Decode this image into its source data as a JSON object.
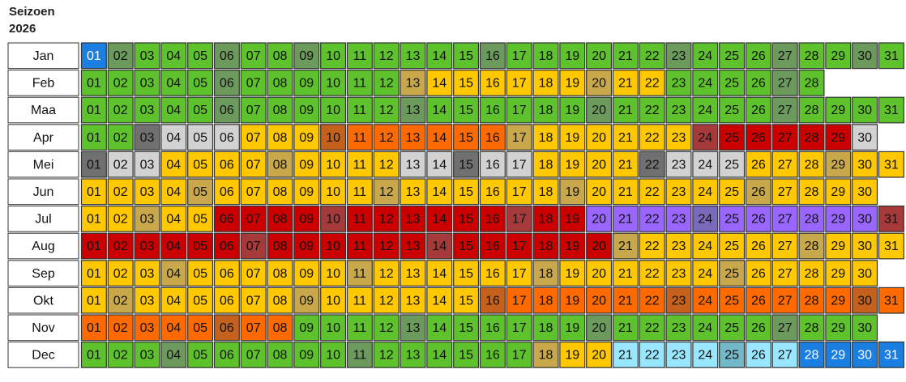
{
  "header": {
    "title": "Seizoen",
    "year": "2026"
  },
  "palette": {
    "g": "#5ec22c",
    "G": "#6b9a5c",
    "y": "#ffc800",
    "Y": "#c9a84c",
    "o": "#ff6a00",
    "O": "#c5611c",
    "r": "#cc0000",
    "R": "#a63a3a",
    "p": "#9966ff",
    "P": "#7a6abb",
    "c": "#99e6ff",
    "C": "#72b8c8",
    "b": "#1a7fe0",
    "l": "#d2d2d2",
    "L": "#707070"
  },
  "months": [
    {
      "name": "Jan",
      "colors": "bGgggGggGggggggGggggggGgggGggGg",
      "days": [
        "01",
        "02",
        "03",
        "04",
        "05",
        "06",
        "07",
        "08",
        "09",
        "10",
        "11",
        "12",
        "13",
        "14",
        "15",
        "16",
        "17",
        "18",
        "19",
        "20",
        "21",
        "22",
        "23",
        "24",
        "25",
        "26",
        "27",
        "28",
        "29",
        "30",
        "31"
      ]
    },
    {
      "name": "Feb",
      "colors": "gggggGggggggYyyyyyyYyyggggGg",
      "days": [
        "01",
        "02",
        "03",
        "04",
        "05",
        "06",
        "07",
        "08",
        "09",
        "10",
        "11",
        "12",
        "13",
        "14",
        "15",
        "16",
        "17",
        "18",
        "19",
        "20",
        "21",
        "22",
        "23",
        "24",
        "25",
        "26",
        "27",
        "28"
      ]
    },
    {
      "name": "Maa",
      "colors": "gggggGggggggGggggggGggggggGgggg",
      "days": [
        "01",
        "02",
        "03",
        "04",
        "05",
        "06",
        "07",
        "08",
        "09",
        "10",
        "11",
        "12",
        "13",
        "14",
        "15",
        "16",
        "17",
        "18",
        "19",
        "20",
        "21",
        "22",
        "23",
        "24",
        "25",
        "26",
        "27",
        "28",
        "29",
        "30",
        "31"
      ]
    },
    {
      "name": "Apr",
      "colors": "ggLlllyyyOooooooYyyyyyyRrrrrrl",
      "days": [
        "01",
        "02",
        "03",
        "04",
        "05",
        "06",
        "07",
        "08",
        "09",
        "10",
        "11",
        "12",
        "13",
        "14",
        "15",
        "16",
        "17",
        "18",
        "19",
        "20",
        "21",
        "22",
        "23",
        "24",
        "25",
        "26",
        "27",
        "28",
        "29",
        "30"
      ]
    },
    {
      "name": "Mei",
      "colors": "LllyyyyYyyyyllLllyyyyLlllyyyYyy",
      "days": [
        "01",
        "02",
        "03",
        "04",
        "05",
        "06",
        "07",
        "08",
        "09",
        "10",
        "11",
        "12",
        "13",
        "14",
        "15",
        "16",
        "17",
        "18",
        "19",
        "20",
        "21",
        "22",
        "23",
        "24",
        "25",
        "26",
        "27",
        "28",
        "29",
        "30",
        "31"
      ]
    },
    {
      "name": "Jun",
      "colors": "yyyyYyyyyyyYyyyyyyYyyyyyyYyyyy",
      "days": [
        "01",
        "02",
        "03",
        "04",
        "05",
        "06",
        "07",
        "08",
        "09",
        "10",
        "11",
        "12",
        "13",
        "14",
        "15",
        "16",
        "17",
        "18",
        "19",
        "20",
        "21",
        "22",
        "23",
        "24",
        "25",
        "26",
        "27",
        "28",
        "29",
        "30"
      ]
    },
    {
      "name": "Jul",
      "colors": "yyYyyrrrrRrrrrrrRrrppppPppppppR",
      "days": [
        "01",
        "02",
        "03",
        "04",
        "05",
        "06",
        "07",
        "08",
        "09",
        "10",
        "11",
        "12",
        "13",
        "14",
        "15",
        "16",
        "17",
        "18",
        "19",
        "20",
        "21",
        "22",
        "23",
        "24",
        "25",
        "26",
        "27",
        "28",
        "29",
        "30",
        "31"
      ]
    },
    {
      "name": "Aug",
      "colors": "rrrrrrRrrrrrrRrrrrrrYyyyyyyYyyy",
      "days": [
        "01",
        "02",
        "03",
        "04",
        "05",
        "06",
        "07",
        "08",
        "09",
        "10",
        "11",
        "12",
        "13",
        "14",
        "15",
        "16",
        "17",
        "18",
        "19",
        "20",
        "21",
        "22",
        "23",
        "24",
        "25",
        "26",
        "27",
        "28",
        "29",
        "30",
        "31"
      ]
    },
    {
      "name": "Sep",
      "colors": "yyyYyyyyyyYyyyyyyYyyyyyyYyyyyy",
      "days": [
        "01",
        "02",
        "03",
        "04",
        "05",
        "06",
        "07",
        "08",
        "09",
        "10",
        "11",
        "12",
        "13",
        "14",
        "15",
        "16",
        "17",
        "18",
        "19",
        "20",
        "21",
        "22",
        "23",
        "24",
        "25",
        "26",
        "27",
        "28",
        "29",
        "30"
      ]
    },
    {
      "name": "Okt",
      "colors": "yYyyyyyyYyyyyyyOooooooOooooooOo",
      "days": [
        "01",
        "02",
        "03",
        "04",
        "05",
        "06",
        "07",
        "08",
        "09",
        "10",
        "11",
        "12",
        "13",
        "14",
        "15",
        "16",
        "17",
        "18",
        "19",
        "20",
        "21",
        "22",
        "23",
        "24",
        "25",
        "26",
        "27",
        "28",
        "29",
        "30",
        "31"
      ]
    },
    {
      "name": "Nov",
      "colors": "oooooOooggggGggggggGggggggGggg",
      "days": [
        "01",
        "02",
        "03",
        "04",
        "05",
        "06",
        "07",
        "08",
        "09",
        "10",
        "11",
        "12",
        "13",
        "14",
        "15",
        "16",
        "17",
        "18",
        "19",
        "20",
        "21",
        "22",
        "23",
        "24",
        "25",
        "26",
        "27",
        "28",
        "29",
        "30"
      ]
    },
    {
      "name": "Dec",
      "colors": "gggGggggggGggggggYyyccccCccbbbb",
      "days": [
        "01",
        "02",
        "03",
        "04",
        "05",
        "06",
        "07",
        "08",
        "09",
        "10",
        "11",
        "12",
        "13",
        "14",
        "15",
        "16",
        "17",
        "18",
        "19",
        "20",
        "21",
        "22",
        "23",
        "24",
        "25",
        "26",
        "27",
        "28",
        "29",
        "30",
        "31"
      ]
    }
  ]
}
